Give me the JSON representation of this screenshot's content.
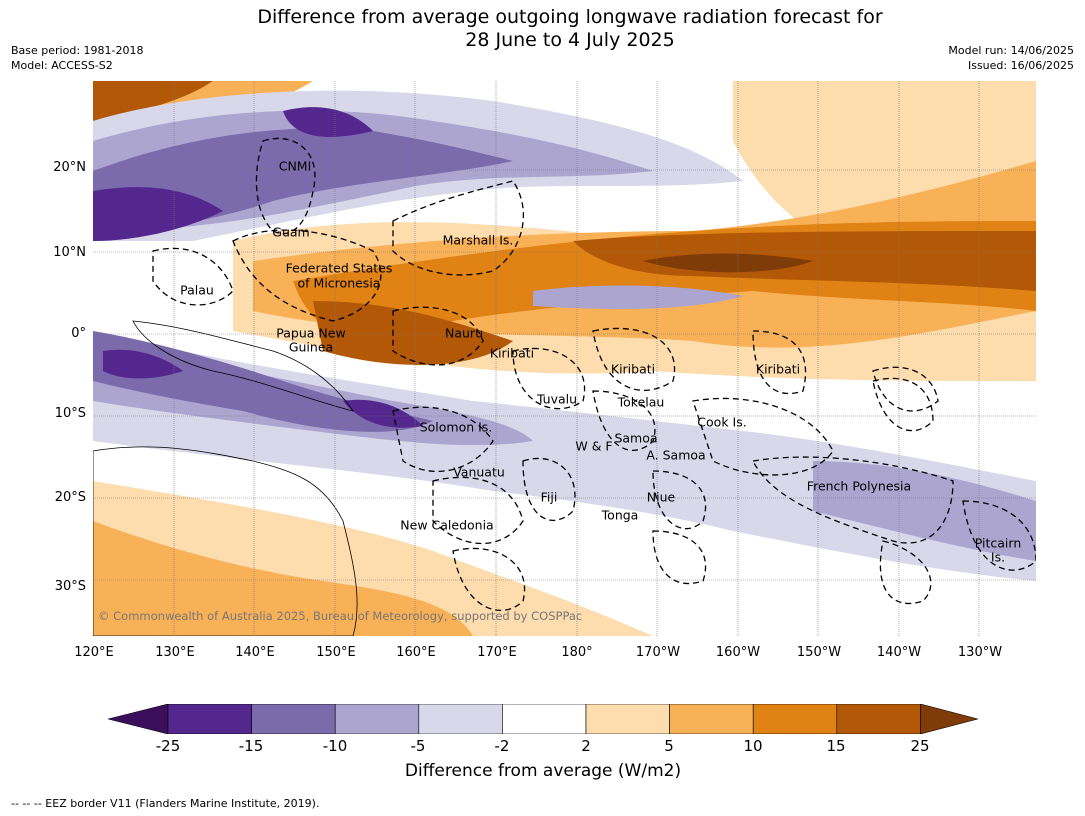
{
  "title_line1": "Difference from average outgoing longwave radiation forecast for",
  "title_line2": "28 June to 4 July 2025",
  "meta": {
    "base_period": "Base period: 1981-2018",
    "model": "Model: ACCESS-S2",
    "model_run": "Model run: 14/06/2025",
    "issued": "Issued: 16/06/2025"
  },
  "axes": {
    "lat_labels": [
      "20°N",
      "10°N",
      "0°",
      "10°S",
      "20°S",
      "30°S"
    ],
    "lon_labels": [
      "120°E",
      "130°E",
      "140°E",
      "150°E",
      "160°E",
      "170°E",
      "180°",
      "170°W",
      "160°W",
      "150°W",
      "140°W",
      "130°W"
    ]
  },
  "regions": [
    "CNMI",
    "Guam",
    "Marshall Is.",
    "Federated States",
    "of Micronesia",
    "Palau",
    "Papua New",
    "Guinea",
    "Nauru",
    "Kiribati",
    "Kiribati",
    "Kiribati",
    "Tuvalu",
    "Tokelau",
    "Solomon Is.",
    "Cook Is.",
    "Samoa",
    "W & F",
    "A. Samoa",
    "Vanuatu",
    "Fiji",
    "Niue",
    "French Polynesia",
    "Tonga",
    "New Caledonia",
    "Pitcairn",
    "Is."
  ],
  "copyright": "© Commonwealth of Australia 2025, Bureau of Meteorology, supported by COSPPac",
  "colorbar": {
    "ticks": [
      "-25",
      "-15",
      "-10",
      "-5",
      "-2",
      "2",
      "5",
      "10",
      "15",
      "25"
    ],
    "colors": [
      "#3b0f5c",
      "#54278f",
      "#7b6bac",
      "#aca5d0",
      "#d9d8ea",
      "#ffffff",
      "#fddcae",
      "#f9b158",
      "#e08214",
      "#b35806",
      "#7f3b08"
    ],
    "label": "Difference from average (W/m2)"
  },
  "footnote": "--  --  -- EEZ border V11 (Flanders Marine Institute, 2019)."
}
